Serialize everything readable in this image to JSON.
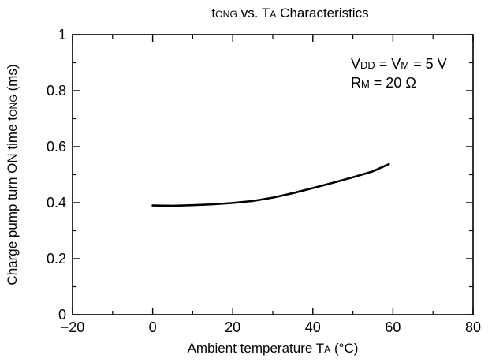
{
  "chart_data": {
    "type": "line",
    "title": {
      "main": "t",
      "sub": "ONG",
      "rest1": " vs. T",
      "sub2": "A",
      "rest2": " Characteristics"
    },
    "xlabel": {
      "main": "Ambient temperature  T",
      "sub": "A",
      "rest": " (°C)"
    },
    "ylabel": {
      "main": "Charge pump turn ON time  t",
      "sub": "ONG",
      "rest": " (ms)"
    },
    "xlim": [
      -20,
      80
    ],
    "ylim": [
      0,
      1
    ],
    "x_ticks": [
      -20,
      0,
      20,
      40,
      60,
      80
    ],
    "x_tick_labels": [
      "−20",
      "0",
      "20",
      "40",
      "60",
      "80"
    ],
    "y_ticks": [
      0,
      0.2,
      0.4,
      0.6,
      0.8,
      1
    ],
    "y_tick_labels": [
      "0",
      "0.2",
      "0.4",
      "0.6",
      "0.8",
      "1"
    ],
    "grid": false,
    "annotations": [
      {
        "main": "V",
        "sub": "DD",
        "rest1": " = V",
        "sub2": "M",
        "rest2": " = 5 V"
      },
      {
        "main": "R",
        "sub": "M",
        "rest1": " = 20 Ω",
        "sub2": "",
        "rest2": ""
      }
    ],
    "series": [
      {
        "x": [
          0,
          5,
          10,
          15,
          20,
          25,
          30,
          35,
          40,
          45,
          50,
          55,
          59
        ],
        "values": [
          0.39,
          0.389,
          0.391,
          0.394,
          0.399,
          0.406,
          0.418,
          0.434,
          0.452,
          0.471,
          0.491,
          0.512,
          0.538
        ]
      }
    ]
  }
}
